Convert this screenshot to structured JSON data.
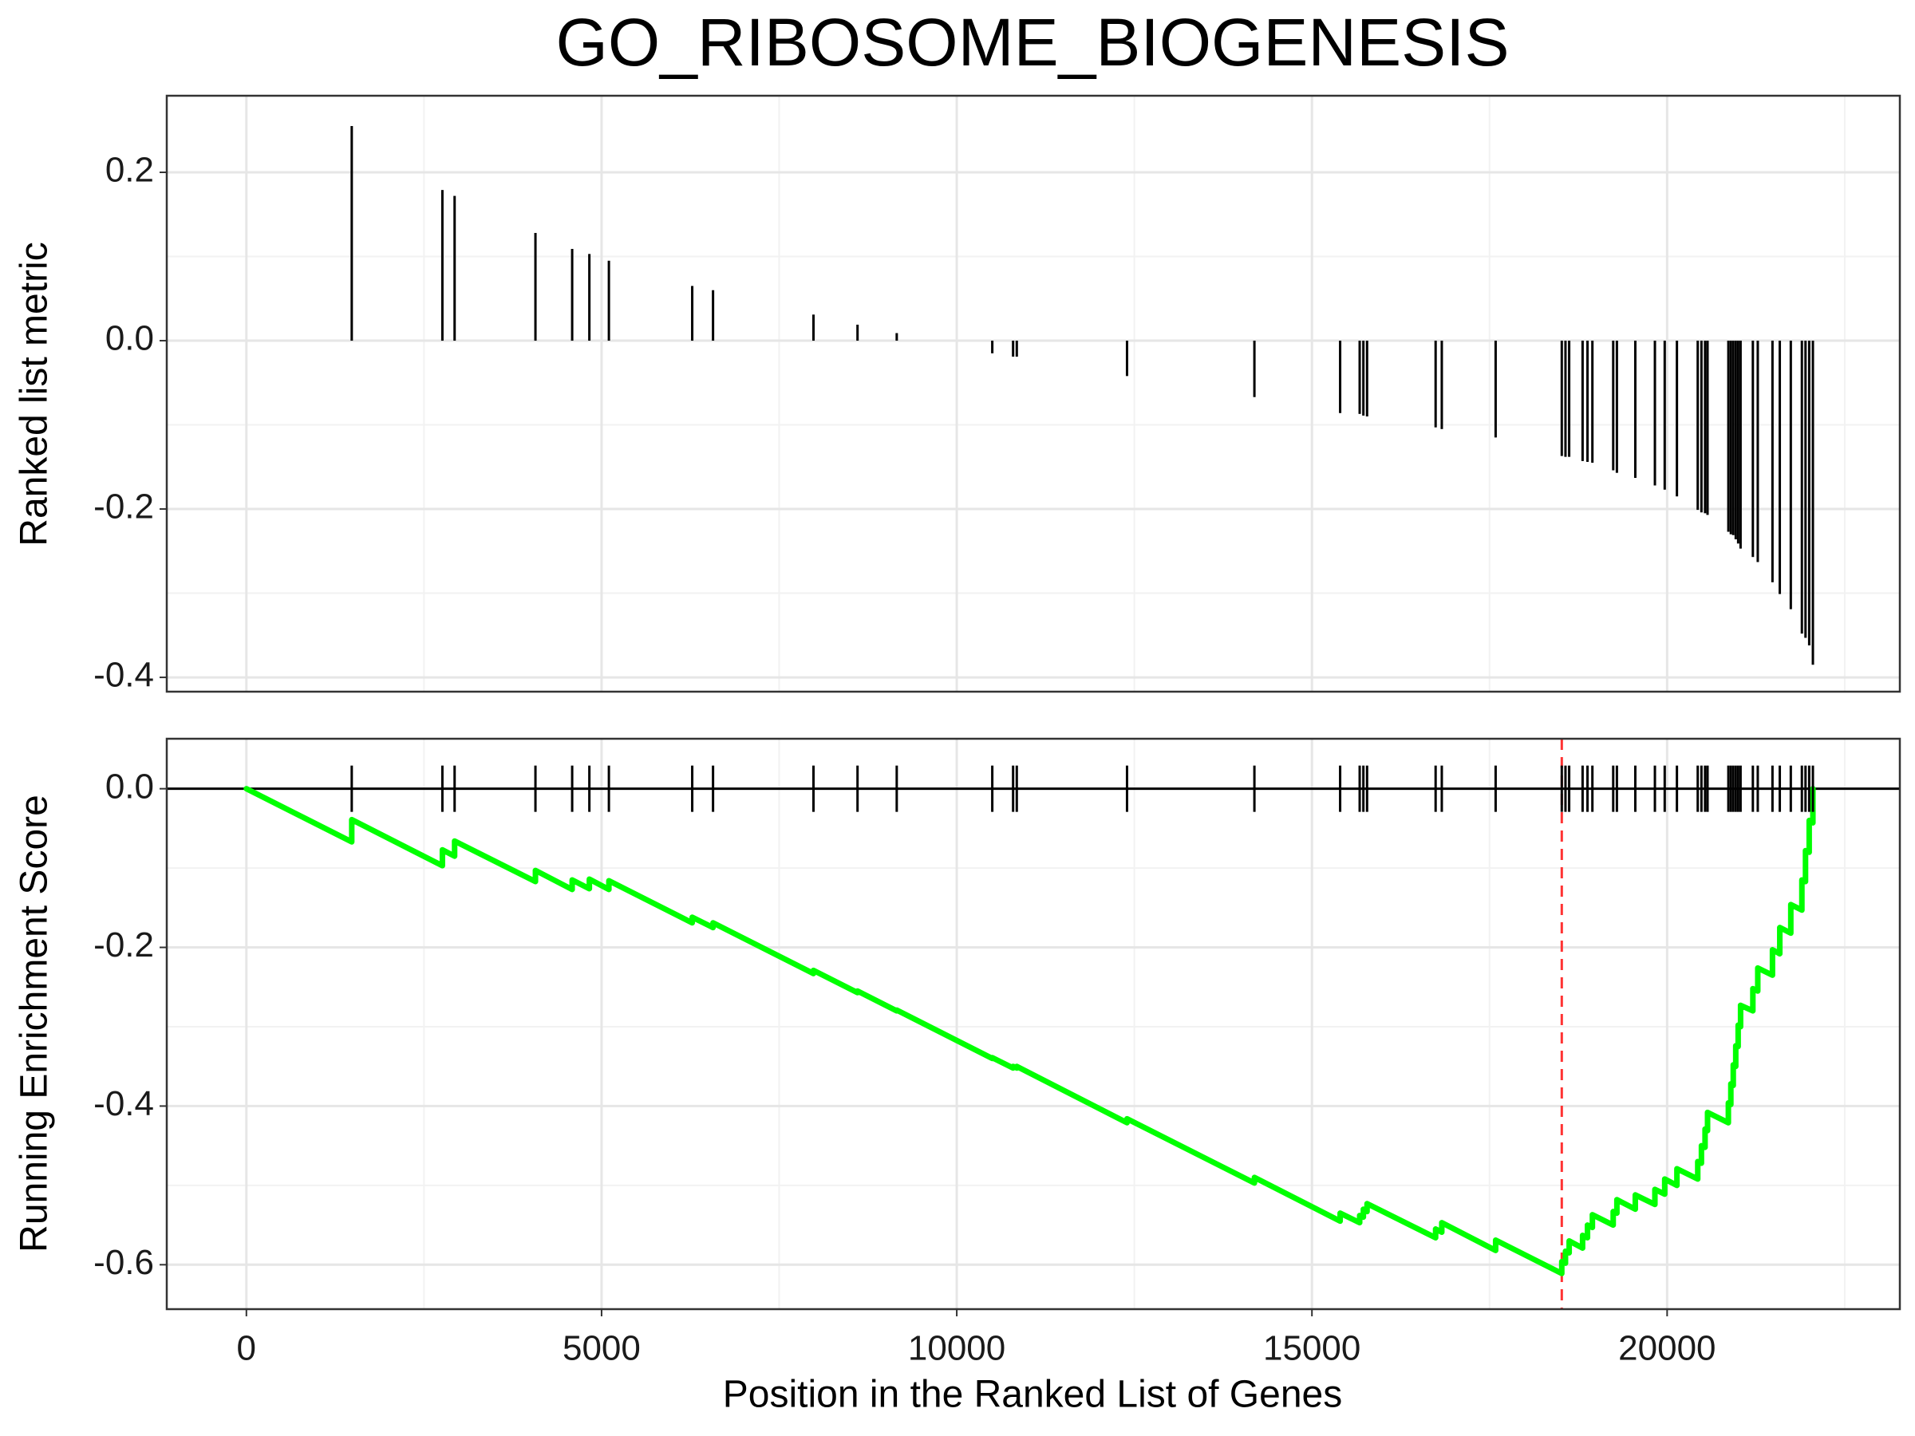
{
  "chart_data": [
    {
      "type": "bar",
      "title": "GO_RIBOSOME_BIOGENESIS",
      "ylabel": "Ranked list metric",
      "color": "#000000",
      "x": [
        1483,
        2759,
        2931,
        4069,
        4586,
        4828,
        5103,
        6276,
        6569,
        7983,
        8603,
        9155,
        10500,
        10793,
        10845,
        12397,
        14190,
        15397,
        15672,
        15724,
        15776,
        16741,
        16828,
        17586,
        18517,
        18569,
        18621,
        18810,
        18879,
        18948,
        19241,
        19293,
        19552,
        19828,
        19966,
        20138,
        20431,
        20483,
        20534,
        20569,
        20862,
        20897,
        20931,
        20966,
        21000,
        21034,
        21207,
        21276,
        21483,
        21586,
        21741,
        21897,
        21948,
        22000,
        22052
      ],
      "values": [
        0.255,
        0.179,
        0.172,
        0.128,
        0.109,
        0.103,
        0.095,
        0.065,
        0.06,
        0.031,
        0.019,
        0.009,
        -0.015,
        -0.019,
        -0.019,
        -0.042,
        -0.067,
        -0.086,
        -0.087,
        -0.089,
        -0.09,
        -0.103,
        -0.105,
        -0.115,
        -0.137,
        -0.138,
        -0.138,
        -0.143,
        -0.144,
        -0.145,
        -0.154,
        -0.157,
        -0.163,
        -0.172,
        -0.177,
        -0.185,
        -0.201,
        -0.204,
        -0.205,
        -0.207,
        -0.227,
        -0.23,
        -0.231,
        -0.236,
        -0.241,
        -0.247,
        -0.257,
        -0.263,
        -0.287,
        -0.301,
        -0.319,
        -0.348,
        -0.353,
        -0.362,
        -0.385
      ],
      "xlim": [
        -1121,
        23276
      ],
      "ylim": [
        -0.417,
        0.291
      ],
      "yticks": [
        -0.4,
        -0.2,
        {
          "value": 0,
          "label": "0.0"
        },
        0.2
      ],
      "minor_yticks": [
        -0.3,
        -0.1,
        0.1
      ],
      "grid": true
    },
    {
      "type": "line",
      "ylabel": "Running Enrichment Score",
      "xlabel": "Position in the Ranked List of Genes",
      "color": "#00ff00",
      "x": [
        0,
        1483,
        1483,
        2759,
        2759,
        2931,
        2931,
        4069,
        4069,
        4586,
        4586,
        4828,
        4828,
        5103,
        5103,
        6276,
        6276,
        6569,
        6569,
        7983,
        7983,
        8603,
        8603,
        9155,
        9155,
        10500,
        10500,
        10793,
        10793,
        10845,
        10845,
        12397,
        12397,
        14190,
        14190,
        15397,
        15397,
        15672,
        15672,
        15724,
        15724,
        15776,
        15776,
        16741,
        16741,
        16828,
        16828,
        17586,
        17586,
        18517,
        18517,
        18569,
        18569,
        18621,
        18621,
        18810,
        18810,
        18879,
        18879,
        18948,
        18948,
        19241,
        19241,
        19293,
        19293,
        19552,
        19552,
        19828,
        19828,
        19966,
        19966,
        20138,
        20138,
        20431,
        20431,
        20483,
        20483,
        20534,
        20534,
        20569,
        20569,
        20862,
        20862,
        20897,
        20897,
        20931,
        20931,
        20966,
        20966,
        21000,
        21000,
        21034,
        21034,
        21207,
        21207,
        21276,
        21276,
        21483,
        21483,
        21586,
        21586,
        21741,
        21741,
        21897,
        21897,
        21948,
        21948,
        22000,
        22000,
        22052,
        22052
      ],
      "values": [
        0,
        -0.067,
        -0.039,
        -0.097,
        -0.077,
        -0.085,
        -0.066,
        -0.117,
        -0.103,
        -0.127,
        -0.115,
        -0.126,
        -0.114,
        -0.127,
        -0.116,
        -0.169,
        -0.162,
        -0.175,
        -0.169,
        -0.233,
        -0.229,
        -0.257,
        -0.255,
        -0.28,
        -0.279,
        -0.34,
        -0.339,
        -0.352,
        -0.35,
        -0.352,
        -0.35,
        -0.421,
        -0.416,
        -0.497,
        -0.49,
        -0.545,
        -0.535,
        -0.547,
        -0.538,
        -0.54,
        -0.53,
        -0.533,
        -0.523,
        -0.566,
        -0.555,
        -0.559,
        -0.547,
        -0.582,
        -0.569,
        -0.611,
        -0.596,
        -0.598,
        -0.583,
        -0.585,
        -0.57,
        -0.579,
        -0.563,
        -0.566,
        -0.55,
        -0.553,
        -0.537,
        -0.55,
        -0.533,
        -0.535,
        -0.518,
        -0.53,
        -0.512,
        -0.524,
        -0.505,
        -0.511,
        -0.492,
        -0.5,
        -0.479,
        -0.492,
        -0.47,
        -0.472,
        -0.45,
        -0.452,
        -0.429,
        -0.431,
        -0.408,
        -0.421,
        -0.396,
        -0.398,
        -0.372,
        -0.374,
        -0.348,
        -0.35,
        -0.324,
        -0.325,
        -0.298,
        -0.3,
        -0.273,
        -0.28,
        -0.252,
        -0.255,
        -0.226,
        -0.235,
        -0.203,
        -0.208,
        -0.175,
        -0.182,
        -0.146,
        -0.153,
        -0.115,
        -0.117,
        -0.078,
        -0.08,
        -0.04,
        -0.043,
        0.0
      ],
      "xlim": [
        -1121,
        23276
      ],
      "ylim": [
        -0.656,
        0.063
      ],
      "xticks": [
        0,
        5000,
        10000,
        15000,
        20000
      ],
      "minor_xticks": [
        2500,
        7500,
        12500,
        17500,
        22500
      ],
      "yticks": [
        -0.6,
        -0.4,
        -0.2,
        {
          "value": 0,
          "label": "0.0"
        }
      ],
      "minor_yticks": [
        -0.5,
        -0.3,
        -0.1
      ],
      "hline": 0,
      "vline": 18517,
      "vline_color": "#ff3333",
      "rug": true,
      "grid": true
    }
  ]
}
